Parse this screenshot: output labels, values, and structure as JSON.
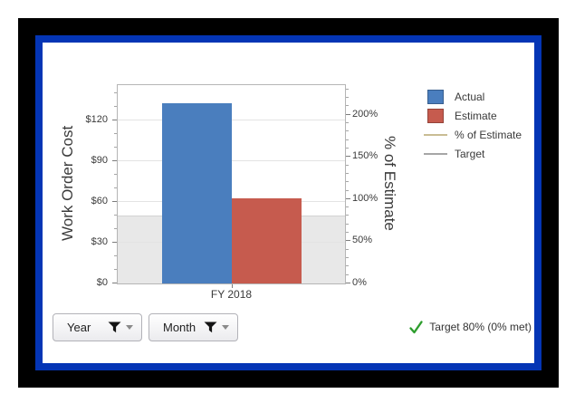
{
  "frame": {
    "outer_color": "#000000",
    "border_color": "#0435B5"
  },
  "chart_data": {
    "type": "bar",
    "categories": [
      "FY 2018"
    ],
    "series": [
      {
        "name": "Actual",
        "values": [
          133
        ],
        "color": "#4A7EBE"
      },
      {
        "name": "Estimate",
        "values": [
          63
        ],
        "color": "#C65B4E"
      }
    ],
    "left_axis": {
      "label": "Work Order Cost",
      "ticks": [
        "$0",
        "$30",
        "$60",
        "$90",
        "$120"
      ],
      "tick_values": [
        0,
        30,
        60,
        90,
        120
      ],
      "minor_step": 10,
      "min": 0,
      "max": 146
    },
    "right_axis": {
      "label": "% of Estimate",
      "ticks": [
        "0%",
        "50%",
        "100%",
        "150%",
        "200%"
      ],
      "tick_values": [
        0,
        50,
        100,
        150,
        200
      ],
      "minor_step": 10,
      "min": 0,
      "max": 235
    },
    "target_band": {
      "from_pct": 0,
      "to_pct": 80,
      "color": "#E8E8E8"
    },
    "legend": [
      {
        "label": "Actual",
        "type": "swatch",
        "color": "#4A7EBE"
      },
      {
        "label": "Estimate",
        "type": "swatch",
        "color": "#C65B4E"
      },
      {
        "label": "% of Estimate",
        "type": "line",
        "color": "#C9BD94"
      },
      {
        "label": "Target",
        "type": "line",
        "color": "#A6A6A6"
      }
    ],
    "grid": true,
    "legend_position": "top-right"
  },
  "filters": {
    "year_label": "Year",
    "month_label": "Month"
  },
  "status": {
    "target_text": "Target 80% (0% met)",
    "check_color": "#2E9E2E"
  }
}
